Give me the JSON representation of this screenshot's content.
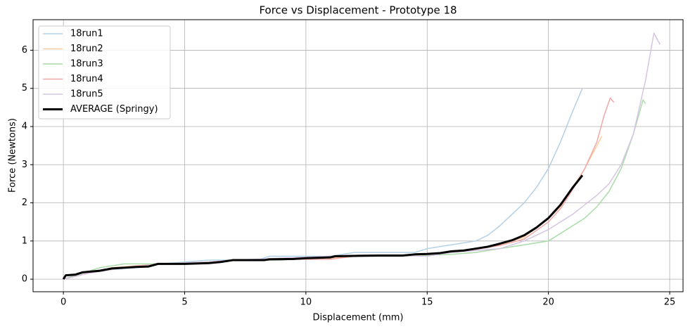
{
  "chart_data": {
    "type": "line",
    "title": "Force vs Displacement - Prototype 18",
    "x_label": "Displacement (mm)",
    "y_label": "Force (Newtons)",
    "xlim": [
      -1.25,
      25.55
    ],
    "ylim": [
      -0.33,
      6.8
    ],
    "xticks": [
      0,
      5,
      10,
      15,
      20,
      25
    ],
    "yticks": [
      0,
      1,
      2,
      3,
      4,
      5,
      6
    ],
    "grid": true,
    "legend": "upper left",
    "series": [
      {
        "name": "18run1",
        "color": "#b4d0e6",
        "width": 1.5,
        "x": [
          0,
          0.5,
          1,
          2,
          3,
          4,
          6,
          8,
          8.5,
          11,
          12,
          14.5,
          15,
          16,
          17,
          17.5,
          18,
          18.5,
          19,
          19.5,
          20,
          20.5,
          21,
          21.4
        ],
        "values": [
          0,
          0.1,
          0.2,
          0.25,
          0.3,
          0.4,
          0.5,
          0.5,
          0.6,
          0.6,
          0.7,
          0.7,
          0.8,
          0.9,
          1.0,
          1.15,
          1.4,
          1.7,
          2.0,
          2.4,
          2.9,
          3.6,
          4.4,
          5.0
        ]
      },
      {
        "name": "18run2",
        "color": "#ffcca0",
        "width": 1.5,
        "x": [
          0,
          1,
          2,
          4,
          6,
          7,
          9,
          11,
          12,
          14,
          15,
          16,
          17,
          18,
          19,
          20,
          20.5,
          21,
          21.5,
          22,
          22.2
        ],
        "values": [
          0,
          0.15,
          0.3,
          0.4,
          0.45,
          0.5,
          0.52,
          0.55,
          0.6,
          0.62,
          0.65,
          0.7,
          0.8,
          0.9,
          1.1,
          1.6,
          1.9,
          2.4,
          2.9,
          3.5,
          3.75
        ]
      },
      {
        "name": "18run3",
        "color": "#a8dca8",
        "width": 1.5,
        "x": [
          0,
          1,
          1.5,
          2.5,
          4,
          6,
          7,
          9,
          10,
          11,
          14,
          16,
          17,
          18,
          19,
          20,
          20.5,
          21,
          21.5,
          22,
          22.5,
          23,
          23.5,
          23.9,
          24
        ],
        "values": [
          0,
          0.2,
          0.3,
          0.4,
          0.4,
          0.45,
          0.5,
          0.5,
          0.55,
          0.6,
          0.6,
          0.65,
          0.7,
          0.8,
          0.9,
          1.0,
          1.2,
          1.4,
          1.6,
          1.9,
          2.3,
          2.9,
          3.8,
          4.7,
          4.6
        ]
      },
      {
        "name": "18run4",
        "color": "#f0a8a8",
        "width": 1.5,
        "x": [
          0,
          1,
          2,
          4,
          6,
          7,
          9,
          11,
          12,
          14,
          15,
          16,
          17,
          18,
          19,
          20,
          20.5,
          21,
          21.5,
          22,
          22.3,
          22.55,
          22.7
        ],
        "values": [
          0,
          0.15,
          0.28,
          0.4,
          0.45,
          0.5,
          0.52,
          0.52,
          0.6,
          0.62,
          0.65,
          0.7,
          0.78,
          0.88,
          1.05,
          1.5,
          1.85,
          2.35,
          2.9,
          3.6,
          4.3,
          4.75,
          4.63
        ]
      },
      {
        "name": "18run5",
        "color": "#d5c5e2",
        "width": 1.5,
        "x": [
          0,
          1,
          2,
          4,
          6,
          7,
          9,
          11,
          14,
          15,
          16,
          17,
          18,
          19,
          20,
          21,
          22,
          22.5,
          23,
          23.5,
          24,
          24.35,
          24.6
        ],
        "values": [
          0,
          0.15,
          0.25,
          0.4,
          0.45,
          0.5,
          0.55,
          0.6,
          0.62,
          0.6,
          0.7,
          0.75,
          0.8,
          1.0,
          1.3,
          1.7,
          2.2,
          2.5,
          3.0,
          3.8,
          5.2,
          6.45,
          6.15
        ]
      },
      {
        "name": "AVERAGE (Springy)",
        "color": "#000000",
        "width": 3,
        "x": [
          0,
          0.1,
          0.5,
          0.8,
          1.5,
          2,
          2.5,
          3,
          3.5,
          3.9,
          5,
          6,
          6.5,
          7,
          8.3,
          8.5,
          9.5,
          10,
          11,
          11.2,
          12,
          13,
          14,
          14.5,
          15,
          15.5,
          16,
          16.5,
          17,
          17.5,
          18,
          18.5,
          19,
          19.5,
          20,
          20.5,
          21,
          21.4
        ],
        "values": [
          0,
          0.1,
          0.12,
          0.18,
          0.22,
          0.28,
          0.3,
          0.32,
          0.33,
          0.4,
          0.4,
          0.42,
          0.45,
          0.5,
          0.5,
          0.52,
          0.53,
          0.55,
          0.57,
          0.6,
          0.61,
          0.62,
          0.62,
          0.65,
          0.66,
          0.68,
          0.73,
          0.75,
          0.8,
          0.85,
          0.93,
          1.02,
          1.15,
          1.35,
          1.6,
          1.95,
          2.4,
          2.72
        ]
      }
    ]
  }
}
